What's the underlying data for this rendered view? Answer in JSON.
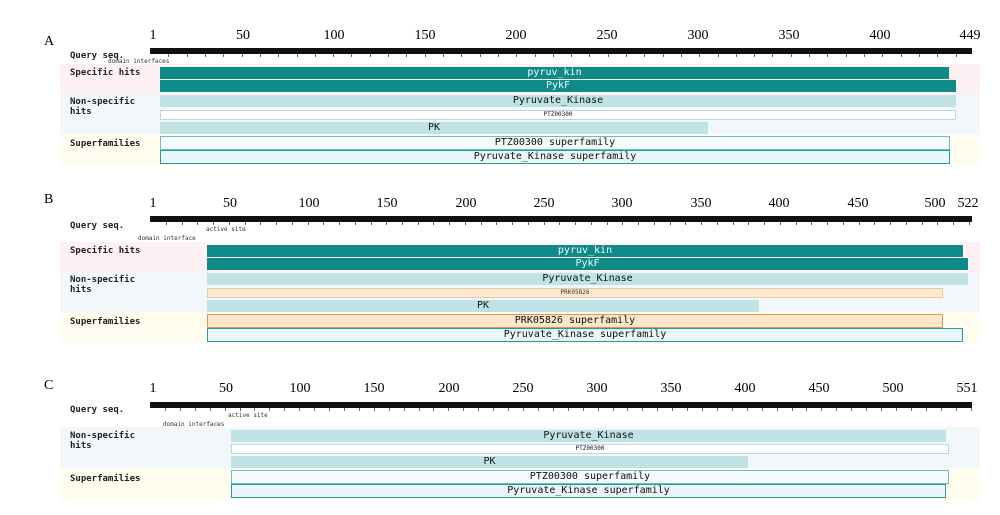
{
  "panels": [
    {
      "letter": "A",
      "ticks": [
        "1",
        "50",
        "100",
        "150",
        "200",
        "250",
        "300",
        "350",
        "400",
        "449"
      ],
      "length": 449,
      "row_labels": {
        "query": "Query seq.",
        "specific": "Specific hits",
        "nonspecific": "Non-specific\nhits",
        "superfamilies": "Superfamilies"
      },
      "annotations": [
        "domain interfaces"
      ],
      "features": {
        "pyruv_kin": "pyruv_kin",
        "pykf": "PykF",
        "pyruvate_kinase": "Pyruvate_Kinase",
        "ptz_small": "PTZ00300",
        "pk": "PK",
        "ptz_super": "PTZ00300 superfamily",
        "pk_super": "Pyruvate_Kinase superfamily"
      }
    },
    {
      "letter": "B",
      "ticks": [
        "1",
        "50",
        "100",
        "150",
        "200",
        "250",
        "300",
        "350",
        "400",
        "450",
        "500",
        "522"
      ],
      "length": 522,
      "row_labels": {
        "query": "Query seq.",
        "specific": "Specific hits",
        "nonspecific": "Non-specific\nhits",
        "superfamilies": "Superfamilies"
      },
      "annotations": [
        "active site",
        "domain interface"
      ],
      "features": {
        "pyruv_kin": "pyruv_kin",
        "pykf": "PykF",
        "pyruvate_kinase": "Pyruvate_Kinase",
        "prk_small": "PRK05826",
        "pk": "PK",
        "prk_super": "PRK05826 superfamily",
        "pk_super": "Pyruvate_Kinase superfamily"
      }
    },
    {
      "letter": "C",
      "ticks": [
        "1",
        "50",
        "100",
        "150",
        "200",
        "250",
        "300",
        "350",
        "400",
        "450",
        "500",
        "551"
      ],
      "length": 551,
      "row_labels": {
        "query": "Query seq.",
        "nonspecific": "Non-specific\nhits",
        "superfamilies": "Superfamilies"
      },
      "annotations": [
        "active site",
        "domain interfaces"
      ],
      "features": {
        "pyruvate_kinase": "Pyruvate_Kinase",
        "ptz_small": "PTZ00300",
        "pk": "PK",
        "ptz_super": "PTZ00300 superfamily",
        "pk_super": "Pyruvate_Kinase superfamily"
      }
    }
  ],
  "colors": {
    "specific": "#108a86",
    "nonspecific": "#bfe3e4",
    "superfamily_border": "#2a9a98",
    "orange_super": "#fbe6cc",
    "band_specific": "#fdf1f4",
    "band_nonspecific": "#f1f7fb",
    "band_super": "#fdfcef"
  }
}
